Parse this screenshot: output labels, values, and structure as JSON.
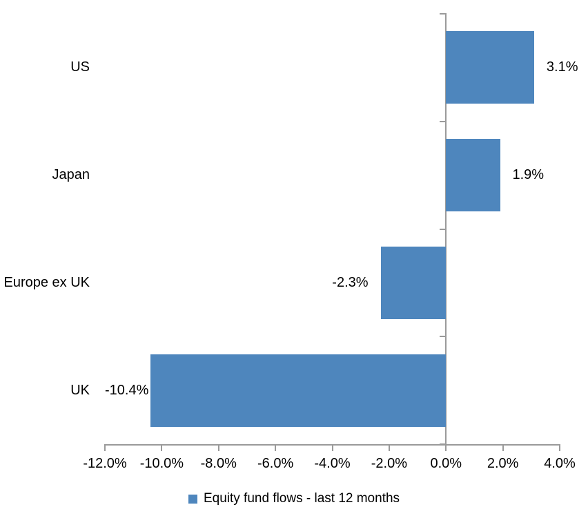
{
  "chart_data": {
    "type": "bar",
    "orientation": "horizontal",
    "title": "",
    "xlabel": "",
    "ylabel": "",
    "unit": "%",
    "categories": [
      "US",
      "Japan",
      "Europe ex UK",
      "UK"
    ],
    "values": [
      3.1,
      1.9,
      -2.3,
      -10.4
    ],
    "data_labels": [
      "3.1%",
      "1.9%",
      "-2.3%",
      "-10.4%"
    ],
    "xlim": [
      -12,
      4
    ],
    "x_ticks": [
      -12,
      -10,
      -8,
      -6,
      -4,
      -2,
      0,
      2,
      4
    ],
    "x_tick_labels": [
      "-12.0%",
      "-10.0%",
      "-8.0%",
      "-6.0%",
      "-4.0%",
      "-2.0%",
      "0.0%",
      "2.0%",
      "4.0%"
    ],
    "grid": false,
    "legend_position": "bottom-center",
    "legend": [
      {
        "label": "Equity fund flows - last 12 months",
        "color": "#4E86BD"
      }
    ],
    "bar_color": "#4E86BD",
    "axis_color": "#9A9A9A",
    "text_color": "#000000",
    "background_color": "#FFFFFF"
  }
}
